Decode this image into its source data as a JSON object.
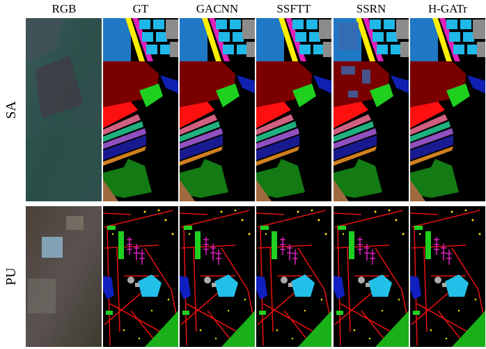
{
  "columns": [
    "RGB",
    "GT",
    "GACNN",
    "SSFTT",
    "SSRN",
    "H-GATr"
  ],
  "rows": [
    "SA",
    "PU"
  ]
}
